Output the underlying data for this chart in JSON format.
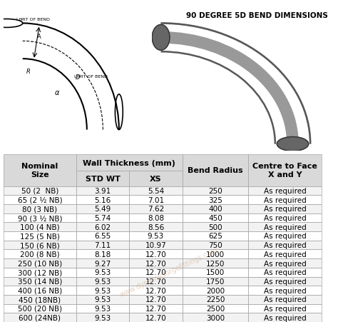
{
  "title": "90 DEGREE 5D BEND DIMENSIONS",
  "columns": [
    "Nominal\nSize",
    "Wall Thickness (mm)\nSTD WT",
    "Wall Thickness (mm)\nXS",
    "Bend Radius",
    "Centre to Face\nX and Y"
  ],
  "col_headers": [
    "Nominal\nSize",
    "STD WT",
    "XS",
    "Bend Radius",
    "Centre to Face\nX and Y"
  ],
  "group_headers": [
    "",
    "Wall Thickness (mm)",
    "",
    "",
    ""
  ],
  "rows": [
    [
      "50 (2  NB)",
      "3.91",
      "5.54",
      "250",
      "As required"
    ],
    [
      "65 (2 ½ NB)",
      "5.16",
      "7.01",
      "325",
      "As required"
    ],
    [
      "80 (3 NB)",
      "5.49",
      "7.62",
      "400",
      "As required"
    ],
    [
      "90 (3 ½ NB)",
      "5.74",
      "8.08",
      "450",
      "As required"
    ],
    [
      "100 (4 NB)",
      "6.02",
      "8.56",
      "500",
      "As required"
    ],
    [
      "125 (5 NB)",
      "6.55",
      "9.53",
      "625",
      "As required"
    ],
    [
      "150 (6 NB)",
      "7.11",
      "10.97",
      "750",
      "As required"
    ],
    [
      "200 (8 NB)",
      "8.18",
      "12.70",
      "1000",
      "As required"
    ],
    [
      "250 (10 NB)",
      "9.27",
      "12.70",
      "1250",
      "As required"
    ],
    [
      "300 (12 NB)",
      "9.53",
      "12.70",
      "1500",
      "As required"
    ],
    [
      "350 (14 NB)",
      "9.53",
      "12.70",
      "1750",
      "As required"
    ],
    [
      "400 (16 NB)",
      "9.53",
      "12.70",
      "2000",
      "As required"
    ],
    [
      "450 (18NB)",
      "9.53",
      "12.70",
      "2250",
      "As required"
    ],
    [
      "500 (20 NB)",
      "9.53",
      "12.70",
      "2500",
      "As required"
    ],
    [
      "600 (24NB)",
      "9.53",
      "12.70",
      "3000",
      "As required"
    ]
  ],
  "bg_color": "#ffffff",
  "header_bg": "#d9d9d9",
  "row_bg_alt": "#f2f2f2",
  "row_bg_main": "#ffffff",
  "border_color": "#aaaaaa",
  "text_color": "#000000",
  "header_fontsize": 8,
  "cell_fontsize": 7.5,
  "watermark": "www.dynamicforgefittings.com"
}
